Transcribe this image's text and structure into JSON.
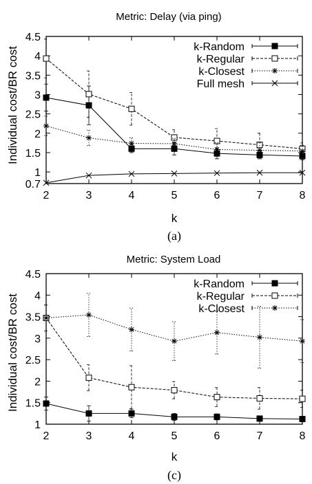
{
  "chart_data": [
    {
      "type": "line",
      "subfigure_label": "(a)",
      "title": "Metric: Delay (via ping)",
      "xlabel": "k",
      "ylabel": "Individual cost/BR cost",
      "x": [
        2,
        3,
        4,
        5,
        6,
        7,
        8
      ],
      "xlim": [
        2,
        8
      ],
      "ylim": [
        0.7,
        4.5
      ],
      "x_ticks": [
        "2",
        "3",
        "4",
        "5",
        "6",
        "7",
        "8"
      ],
      "y_ticks": [
        "0.7",
        "1",
        "1.5",
        "2",
        "2.5",
        "3",
        "3.5",
        "4",
        "4.5"
      ],
      "y_tick_values": [
        0.7,
        1,
        1.5,
        2,
        2.5,
        3,
        3.5,
        4,
        4.5
      ],
      "grid": false,
      "legend_position": "top-right",
      "series": [
        {
          "name": "k-Random",
          "marker": "filled-square",
          "line_style": "solid",
          "values": [
            2.92,
            2.72,
            1.6,
            1.6,
            1.48,
            1.44,
            1.41
          ],
          "err": [
            0.35,
            0.5,
            0.1,
            0.16,
            0.14,
            0.1,
            0.1
          ]
        },
        {
          "name": "k-Regular",
          "marker": "open-square",
          "line_style": "dashed",
          "values": [
            3.93,
            3.01,
            2.63,
            1.89,
            1.8,
            1.7,
            1.6
          ],
          "err": [
            0.5,
            0.6,
            0.42,
            0.2,
            0.32,
            0.3,
            0.15
          ]
        },
        {
          "name": "k-Closest",
          "marker": "asterisk",
          "line_style": "dotted",
          "values": [
            2.19,
            1.88,
            1.74,
            1.73,
            1.58,
            1.56,
            1.54
          ],
          "err": [
            0.25,
            0.2,
            0.14,
            0.14,
            0.18,
            0.2,
            0.15
          ]
        },
        {
          "name": "Full mesh",
          "marker": "x",
          "line_style": "solid",
          "values": [
            0.72,
            0.91,
            0.95,
            0.96,
            0.97,
            0.98,
            0.98
          ],
          "err": [
            0,
            0,
            0,
            0,
            0,
            0,
            0
          ]
        }
      ]
    },
    {
      "type": "line",
      "subfigure_label": "(c)",
      "title": "Metric: System Load",
      "xlabel": "k",
      "ylabel": "Individual cost/BR cost",
      "x": [
        2,
        3,
        4,
        5,
        6,
        7,
        8
      ],
      "xlim": [
        2,
        8
      ],
      "ylim": [
        1,
        4.5
      ],
      "x_ticks": [
        "2",
        "3",
        "4",
        "5",
        "6",
        "7",
        "8"
      ],
      "y_ticks": [
        "1",
        "1.5",
        "2",
        "2.5",
        "3",
        "3.5",
        "4",
        "4.5"
      ],
      "y_tick_values": [
        1,
        1.5,
        2,
        2.5,
        3,
        3.5,
        4,
        4.5
      ],
      "grid": false,
      "legend_position": "top-right",
      "series": [
        {
          "name": "k-Random",
          "marker": "filled-square",
          "line_style": "solid",
          "values": [
            1.48,
            1.25,
            1.25,
            1.17,
            1.17,
            1.13,
            1.12
          ],
          "err": [
            0.15,
            0.18,
            0.1,
            0.08,
            0.07,
            0.05,
            0.05
          ]
        },
        {
          "name": "k-Regular",
          "marker": "open-square",
          "line_style": "dashed",
          "values": [
            3.47,
            2.08,
            1.86,
            1.79,
            1.63,
            1.6,
            1.59
          ],
          "err": [
            0.3,
            0.3,
            0.5,
            0.2,
            0.22,
            0.25,
            0.2
          ]
        },
        {
          "name": "k-Closest",
          "marker": "asterisk",
          "line_style": "dotted",
          "values": [
            3.47,
            3.54,
            3.2,
            2.93,
            3.13,
            3.02,
            2.93
          ],
          "err": [
            0.3,
            0.5,
            0.5,
            0.45,
            0.5,
            0.72,
            0.5
          ]
        }
      ]
    }
  ]
}
